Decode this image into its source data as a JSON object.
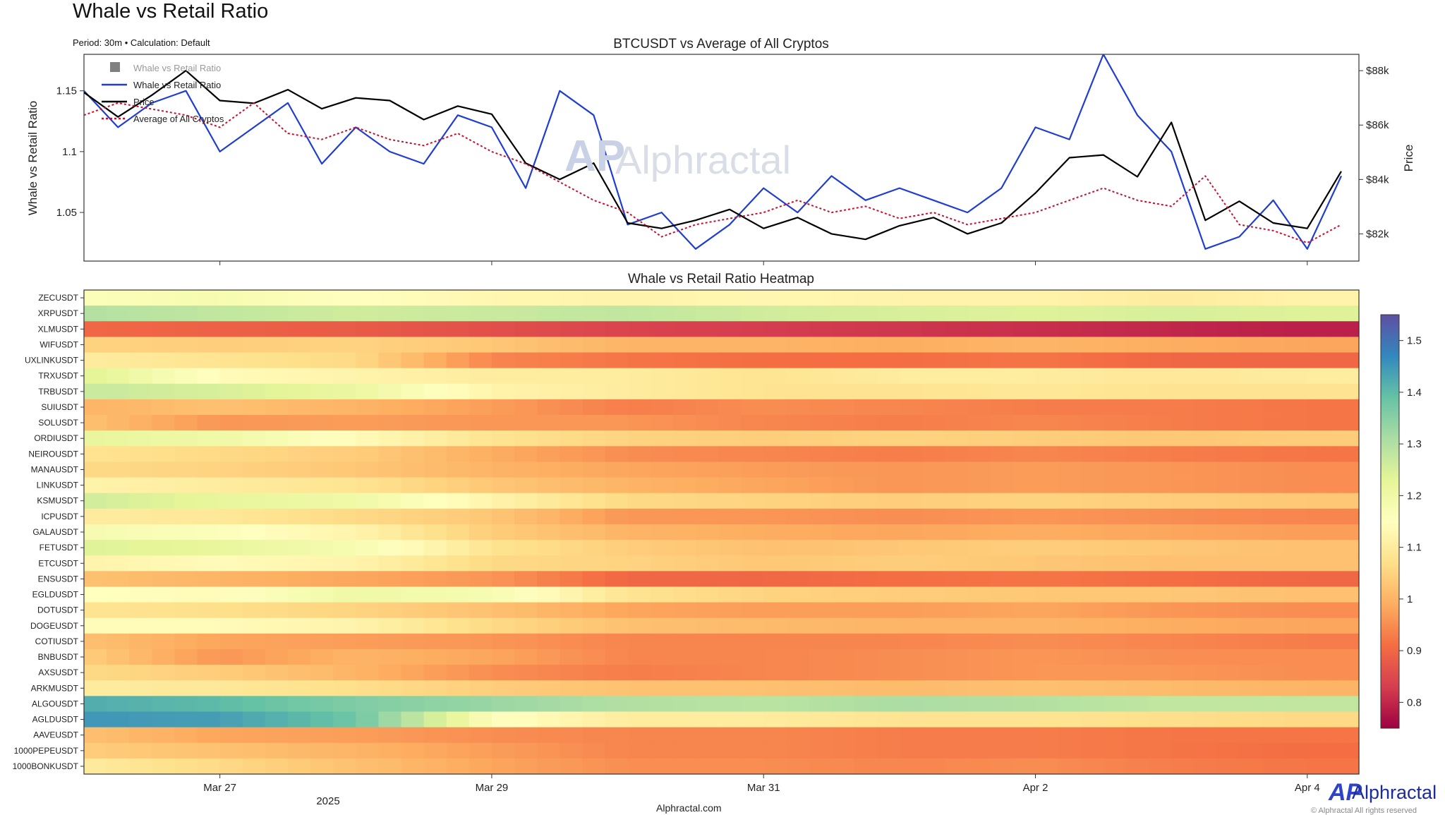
{
  "title": "Whale vs Retail Ratio",
  "subtitle": "Period: 30m • Calculation: Default",
  "watermark": {
    "mark": "AP",
    "text": "Alphractal"
  },
  "footer": "Alphractal.com",
  "brand": {
    "mark": "AP",
    "name": "Alphractal",
    "copyright": "© Alphractal All rights reserved"
  },
  "colors": {
    "whale_line": "#1f3ed1",
    "price_line": "#000000",
    "average_line": "#c8102e",
    "whale_fill": "#808080"
  },
  "chart_data": [
    {
      "type": "line",
      "title": "BTCUSDT vs Average of All Cryptos",
      "ylabel": "Whale vs Retail Ratio",
      "y2label": "Price",
      "ylim": [
        1.01,
        1.18
      ],
      "y2lim": [
        81000,
        88600
      ],
      "yticks": [
        "1.05",
        "1.1",
        "1.15"
      ],
      "y2ticks": [
        "$82k",
        "$84k",
        "$86k",
        "$88k"
      ],
      "xlim": [
        "Mar 26 00:00",
        "Apr 4 06:00"
      ],
      "legend": {
        "position": "top-left",
        "entries": [
          "Whale vs Retail Ratio",
          "Whale vs Retail Ratio",
          "Price",
          "Average of All Cryptos"
        ]
      },
      "x_unit": "days since Mar 26 00:00",
      "series": [
        {
          "name": "Whale vs Retail Ratio",
          "axis": "left",
          "x": [
            0.0,
            0.25,
            0.5,
            0.75,
            1.0,
            1.25,
            1.5,
            1.75,
            2.0,
            2.25,
            2.5,
            2.75,
            3.0,
            3.25,
            3.5,
            3.75,
            4.0,
            4.25,
            4.5,
            4.75,
            5.0,
            5.25,
            5.5,
            5.75,
            6.0,
            6.25,
            6.5,
            6.75,
            7.0,
            7.25,
            7.5,
            7.75,
            8.0,
            8.25,
            8.5,
            8.75,
            9.0,
            9.25
          ],
          "y": [
            1.15,
            1.12,
            1.14,
            1.15,
            1.1,
            1.12,
            1.14,
            1.09,
            1.12,
            1.1,
            1.09,
            1.13,
            1.12,
            1.07,
            1.15,
            1.13,
            1.04,
            1.05,
            1.02,
            1.04,
            1.07,
            1.05,
            1.08,
            1.06,
            1.07,
            1.06,
            1.05,
            1.07,
            1.12,
            1.11,
            1.18,
            1.13,
            1.1,
            1.02,
            1.03,
            1.06,
            1.02,
            1.08
          ]
        },
        {
          "name": "Price",
          "axis": "right",
          "x": [
            0.0,
            0.25,
            0.5,
            0.75,
            1.0,
            1.25,
            1.5,
            1.75,
            2.0,
            2.25,
            2.5,
            2.75,
            3.0,
            3.25,
            3.5,
            3.75,
            4.0,
            4.25,
            4.5,
            4.75,
            5.0,
            5.25,
            5.5,
            5.75,
            6.0,
            6.25,
            6.5,
            6.75,
            7.0,
            7.25,
            7.5,
            7.75,
            8.0,
            8.25,
            8.5,
            8.75,
            9.0,
            9.25
          ],
          "y": [
            87200,
            86300,
            87100,
            88000,
            86900,
            86800,
            87300,
            86600,
            87000,
            86900,
            86200,
            86700,
            86400,
            84600,
            84000,
            84600,
            82400,
            82200,
            82500,
            82900,
            82200,
            82600,
            82000,
            81800,
            82300,
            82600,
            82000,
            82400,
            83500,
            84800,
            84900,
            84100,
            86100,
            82500,
            83200,
            82400,
            82200,
            84300
          ]
        },
        {
          "name": "Average of All Cryptos",
          "axis": "left",
          "x": [
            0.0,
            0.25,
            0.5,
            0.75,
            1.0,
            1.25,
            1.5,
            1.75,
            2.0,
            2.25,
            2.5,
            2.75,
            3.0,
            3.25,
            3.5,
            3.75,
            4.0,
            4.25,
            4.5,
            4.75,
            5.0,
            5.25,
            5.5,
            5.75,
            6.0,
            6.25,
            6.5,
            6.75,
            7.0,
            7.25,
            7.5,
            7.75,
            8.0,
            8.25,
            8.5,
            8.75,
            9.0,
            9.25
          ],
          "y": [
            1.13,
            1.14,
            1.135,
            1.13,
            1.12,
            1.14,
            1.115,
            1.11,
            1.12,
            1.11,
            1.105,
            1.115,
            1.1,
            1.09,
            1.075,
            1.06,
            1.05,
            1.03,
            1.04,
            1.045,
            1.05,
            1.06,
            1.05,
            1.055,
            1.045,
            1.05,
            1.04,
            1.045,
            1.05,
            1.06,
            1.07,
            1.06,
            1.055,
            1.08,
            1.04,
            1.035,
            1.025,
            1.04
          ]
        }
      ],
      "xticks_days": [
        1.0,
        3.0,
        5.0,
        7.0,
        9.0
      ]
    },
    {
      "type": "heatmap",
      "title": "Whale vs Retail Ratio Heatmap",
      "xticks": [
        "Mar 27",
        "Mar 29",
        "Mar 31",
        "Apr 2",
        "Apr 4"
      ],
      "xticks_days": [
        1.0,
        3.0,
        5.0,
        7.0,
        9.0
      ],
      "xlabel_year": "2025",
      "xlim_days": [
        0,
        9.38
      ],
      "colorbar": {
        "min": 0.75,
        "max": 1.55,
        "ticks": [
          "0.8",
          "0.9",
          "1",
          "1.1",
          "1.2",
          "1.3",
          "1.4",
          "1.5"
        ],
        "colormap": "Spectral",
        "stops": [
          "#9e0142",
          "#d53e4f",
          "#f46d43",
          "#fdae61",
          "#fee08b",
          "#ffffbf",
          "#e6f598",
          "#abdda4",
          "#66c2a5",
          "#3288bd",
          "#5e4fa2"
        ]
      },
      "segment_days": [
        0,
        1,
        2,
        3,
        4,
        5,
        6,
        7,
        8,
        9
      ],
      "rows": [
        {
          "symbol": "ZECUSDT",
          "values": [
            1.16,
            1.18,
            1.15,
            1.13,
            1.12,
            1.13,
            1.12,
            1.12,
            1.1,
            1.12
          ]
        },
        {
          "symbol": "XRPUSDT",
          "values": [
            1.3,
            1.28,
            1.26,
            1.27,
            1.28,
            1.26,
            1.25,
            1.24,
            1.25,
            1.24
          ]
        },
        {
          "symbol": "XLMUSDT",
          "values": [
            0.9,
            0.89,
            0.88,
            0.86,
            0.84,
            0.83,
            0.82,
            0.81,
            0.8,
            0.79
          ]
        },
        {
          "symbol": "WIFUSDT",
          "values": [
            1.05,
            1.04,
            1.05,
            1.03,
            1.0,
            1.0,
            0.99,
            1.0,
            0.99,
            0.98
          ]
        },
        {
          "symbol": "UXLINKUSDT",
          "values": [
            1.1,
            1.08,
            1.06,
            0.94,
            0.92,
            0.91,
            0.91,
            0.92,
            0.9,
            0.9
          ]
        },
        {
          "symbol": "TRXUSDT",
          "values": [
            1.24,
            1.14,
            1.12,
            1.1,
            1.1,
            1.08,
            1.1,
            1.1,
            1.09,
            1.1
          ]
        },
        {
          "symbol": "TRBUSDT",
          "values": [
            1.27,
            1.25,
            1.21,
            1.12,
            1.1,
            1.08,
            1.08,
            1.09,
            1.08,
            1.08
          ]
        },
        {
          "symbol": "SUIUSDT",
          "values": [
            1.0,
            1.02,
            1.0,
            0.97,
            0.93,
            0.95,
            0.94,
            0.93,
            0.93,
            0.92
          ]
        },
        {
          "symbol": "SOLUSDT",
          "values": [
            1.02,
            0.96,
            0.97,
            0.96,
            0.96,
            0.94,
            0.93,
            0.94,
            0.93,
            0.92
          ]
        },
        {
          "symbol": "ORDIUSDT",
          "values": [
            1.22,
            1.2,
            1.14,
            1.08,
            1.05,
            1.04,
            1.05,
            1.04,
            1.03,
            1.04
          ]
        },
        {
          "symbol": "NEIROUSDT",
          "values": [
            1.08,
            1.06,
            1.04,
            0.99,
            0.95,
            0.94,
            0.93,
            0.94,
            0.93,
            0.92
          ]
        },
        {
          "symbol": "MANAUSDT",
          "values": [
            1.06,
            1.05,
            1.03,
            1.0,
            0.98,
            0.97,
            0.96,
            0.97,
            0.96,
            0.95
          ]
        },
        {
          "symbol": "LINKUSDT",
          "values": [
            1.12,
            1.1,
            1.08,
            1.03,
            1.0,
            0.98,
            0.96,
            0.97,
            0.96,
            0.95
          ]
        },
        {
          "symbol": "KSMUSDT",
          "values": [
            1.26,
            1.22,
            1.2,
            1.12,
            1.06,
            1.05,
            1.04,
            1.05,
            1.04,
            1.03
          ]
        },
        {
          "symbol": "ICPUSDT",
          "values": [
            1.1,
            1.09,
            1.06,
            1.03,
            0.96,
            0.96,
            0.95,
            0.96,
            0.95,
            0.94
          ]
        },
        {
          "symbol": "GALAUSDT",
          "values": [
            1.18,
            1.16,
            1.12,
            1.04,
            1.0,
            0.99,
            0.98,
            0.99,
            0.98,
            0.97
          ]
        },
        {
          "symbol": "FETUSDT",
          "values": [
            1.24,
            1.22,
            1.18,
            1.08,
            1.04,
            1.02,
            1.03,
            1.04,
            1.03,
            1.02
          ]
        },
        {
          "symbol": "ETCUSDT",
          "values": [
            1.12,
            1.14,
            1.12,
            1.06,
            1.05,
            1.03,
            1.04,
            1.03,
            1.02,
            1.02
          ]
        },
        {
          "symbol": "ENSUSDT",
          "values": [
            1.02,
            1.0,
            0.98,
            0.96,
            0.9,
            0.9,
            0.91,
            0.92,
            0.91,
            0.9
          ]
        },
        {
          "symbol": "EGLDUSDT",
          "values": [
            1.15,
            1.14,
            1.2,
            1.18,
            1.08,
            1.05,
            1.04,
            1.03,
            1.03,
            1.02
          ]
        },
        {
          "symbol": "DOTUSDT",
          "values": [
            1.08,
            1.07,
            1.05,
            1.02,
            0.98,
            0.97,
            0.97,
            0.98,
            0.96,
            0.95
          ]
        },
        {
          "symbol": "DOGEUSDT",
          "values": [
            1.14,
            1.14,
            1.12,
            1.06,
            1.02,
            1.01,
            1.0,
            1.0,
            0.99,
            0.98
          ]
        },
        {
          "symbol": "COTIUSDT",
          "values": [
            1.02,
            0.98,
            0.97,
            0.96,
            0.94,
            0.94,
            0.94,
            0.95,
            0.94,
            0.93
          ]
        },
        {
          "symbol": "BNBUSDT",
          "values": [
            1.04,
            0.96,
            1.0,
            0.98,
            0.94,
            0.94,
            0.95,
            0.96,
            0.95,
            0.95
          ]
        },
        {
          "symbol": "AXSUSDT",
          "values": [
            1.06,
            1.04,
            1.0,
            0.95,
            0.93,
            0.94,
            0.95,
            0.96,
            0.96,
            0.95
          ]
        },
        {
          "symbol": "ARKMUSDT",
          "values": [
            1.1,
            1.09,
            1.07,
            1.04,
            1.02,
            1.02,
            1.01,
            1.02,
            1.01,
            1.0
          ]
        },
        {
          "symbol": "ALGOUSDT",
          "values": [
            1.42,
            1.4,
            1.36,
            1.33,
            1.3,
            1.29,
            1.31,
            1.3,
            1.28,
            1.28
          ]
        },
        {
          "symbol": "AGLDUSDT",
          "values": [
            1.45,
            1.44,
            1.38,
            1.16,
            1.1,
            1.1,
            1.08,
            1.08,
            1.07,
            1.06
          ]
        },
        {
          "symbol": "AAVEUSDT",
          "values": [
            1.02,
            0.98,
            0.97,
            0.95,
            0.94,
            0.94,
            0.93,
            0.93,
            0.92,
            0.92
          ]
        },
        {
          "symbol": "1000PEPEUSDT",
          "values": [
            1.04,
            1.02,
            1.0,
            0.97,
            0.94,
            0.94,
            0.93,
            0.93,
            0.92,
            0.91
          ]
        },
        {
          "symbol": "1000BONKUSDT",
          "values": [
            1.1,
            1.06,
            1.02,
            0.98,
            0.95,
            0.95,
            0.94,
            0.95,
            0.93,
            0.92
          ]
        }
      ]
    }
  ]
}
